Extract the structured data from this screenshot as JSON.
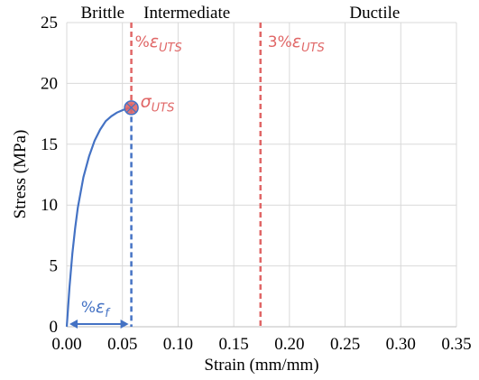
{
  "chart_data": {
    "type": "line",
    "x_ticks": [
      "0.00",
      "0.05",
      "0.10",
      "0.15",
      "0.20",
      "0.25",
      "0.30",
      "0.35"
    ],
    "y_ticks": [
      "0",
      "5",
      "10",
      "15",
      "20",
      "25"
    ],
    "xlim": [
      0,
      0.35
    ],
    "ylim": [
      0,
      25
    ],
    "xlabel": "Strain (mm/mm)",
    "ylabel": "Stress (MPa)",
    "grid": true,
    "regions": [
      "Brittle",
      "Intermediate",
      "Ductile"
    ],
    "region_boundaries": [
      0.058,
      0.174
    ],
    "series": [
      {
        "x": [
          0.0,
          0.0025,
          0.005,
          0.0075,
          0.01,
          0.015,
          0.02,
          0.025,
          0.03,
          0.035,
          0.04,
          0.045,
          0.05,
          0.055,
          0.058
        ],
        "y": [
          0.0,
          3.3,
          6.0,
          8.1,
          9.8,
          12.3,
          14.0,
          15.3,
          16.2,
          16.9,
          17.3,
          17.6,
          17.8,
          17.95,
          18.0
        ],
        "color": "#4472c4"
      }
    ],
    "uts_point": {
      "x": 0.058,
      "y": 18.0,
      "label_symbol": "σ",
      "label_sub": "UTS"
    },
    "annotations": {
      "uts_line_label": {
        "prefix": "%",
        "symbol": "ε",
        "sub": "UTS"
      },
      "uts3_line_label": {
        "prefix": "3%",
        "symbol": "ε",
        "sub": "UTS"
      },
      "fracture_label": {
        "prefix": "%",
        "symbol": "ε",
        "sub": "f"
      }
    },
    "colors": {
      "curve": "#4472c4",
      "uts": "#e06666",
      "grid": "#d9d9d9"
    }
  }
}
